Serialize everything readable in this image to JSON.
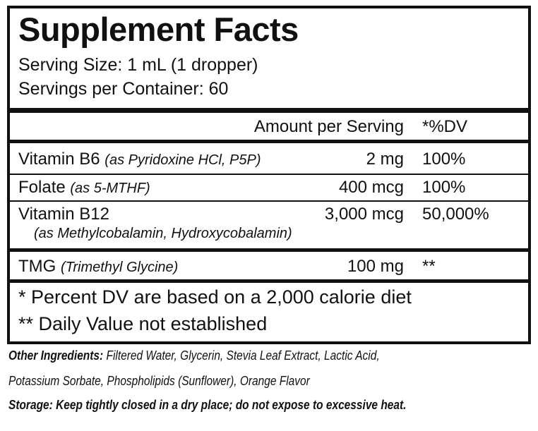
{
  "header": {
    "title": "Supplement Facts",
    "serving_size": "Serving Size: 1 mL (1 dropper)",
    "servings_per_container": "Servings per Container: 60"
  },
  "table": {
    "columns": [
      "Amount per Serving",
      "*%DV"
    ],
    "rows": [
      {
        "name": "Vitamin B6",
        "note": "(as Pyridoxine HCl, P5P)",
        "amount": "2 mg",
        "dv": "100%"
      },
      {
        "name": "Folate",
        "note": "(as 5-MTHF)",
        "amount": "400 mcg",
        "dv": "100%"
      },
      {
        "name": "Vitamin B12",
        "note": "(as Methylcobalamin, Hydroxycobalamin)",
        "amount": "3,000 mcg",
        "dv": "50,000%"
      },
      {
        "name": "TMG",
        "note": "(Trimethyl Glycine)",
        "amount": "100 mg",
        "dv": "**"
      }
    ]
  },
  "footnotes": [
    "* Percent DV are based on a 2,000 calorie diet",
    "** Daily Value not established"
  ],
  "other_ingredients": {
    "label": "Other Ingredients:",
    "lines": [
      "Filtered Water, Glycerin, Stevia Leaf Extract, Lactic Acid,",
      "Potassium Sorbate, Phospholipids (Sunflower), Orange Flavor"
    ]
  },
  "storage": "Storage: Keep tightly closed in a dry place; do not expose to excessive heat."
}
